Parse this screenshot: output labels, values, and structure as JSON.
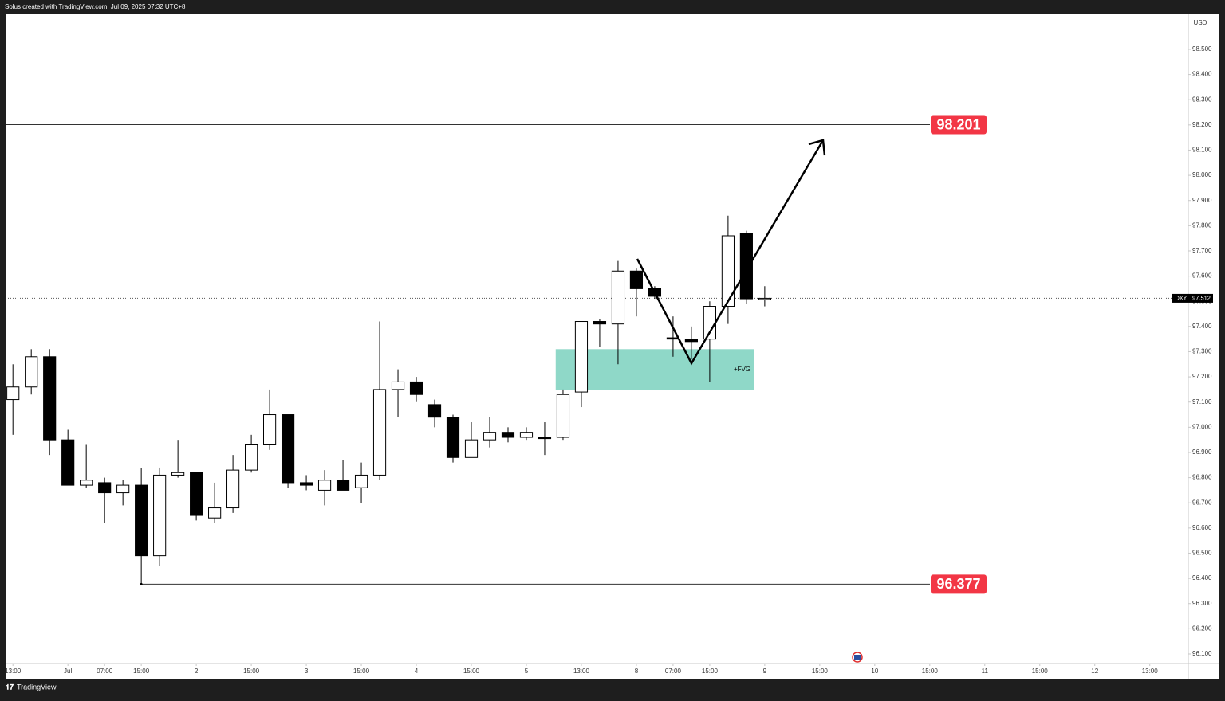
{
  "header": {
    "title": "Solus created with TradingView.com, Jul 09, 2025 07:32 UTC+8"
  },
  "chart_data": {
    "type": "candlestick",
    "currency": "USD",
    "symbol": "DXY",
    "last": 97.512,
    "up_color": "#ffffff",
    "down_color": "#000000",
    "open": [
      97.11,
      97.16,
      97.28,
      96.95,
      96.77,
      96.78,
      96.74,
      96.77,
      96.49,
      96.81,
      96.82,
      96.64,
      96.68,
      96.83,
      96.93,
      97.05,
      96.78,
      96.75,
      96.79,
      96.76,
      96.81,
      97.15,
      97.18,
      97.09,
      97.04,
      96.88,
      96.95,
      96.98,
      96.96,
      96.96,
      96.96,
      97.14,
      97.42,
      97.41,
      97.62,
      97.55,
      97.355,
      97.35,
      97.35,
      97.48,
      97.77,
      97.51
    ],
    "high": [
      97.25,
      97.31,
      97.31,
      96.99,
      96.93,
      96.8,
      96.79,
      96.84,
      96.84,
      96.95,
      96.82,
      96.78,
      96.89,
      96.97,
      97.15,
      97.05,
      96.81,
      96.83,
      96.87,
      96.86,
      97.42,
      97.23,
      97.2,
      97.11,
      97.05,
      97.02,
      97.04,
      97.0,
      97.0,
      97.02,
      97.15,
      97.42,
      97.43,
      97.66,
      97.63,
      97.56,
      97.44,
      97.4,
      97.5,
      97.84,
      97.78,
      97.56
    ],
    "low": [
      96.97,
      97.13,
      96.89,
      96.77,
      96.76,
      96.62,
      96.69,
      96.377,
      96.45,
      96.8,
      96.63,
      96.62,
      96.66,
      96.82,
      96.91,
      96.76,
      96.75,
      96.69,
      96.75,
      96.7,
      96.79,
      97.04,
      97.1,
      97.0,
      96.86,
      96.88,
      96.92,
      96.94,
      96.95,
      96.89,
      96.95,
      97.08,
      97.32,
      97.25,
      97.44,
      97.51,
      97.28,
      97.27,
      97.18,
      97.41,
      97.49,
      97.48
    ],
    "close": [
      97.16,
      97.28,
      96.95,
      96.77,
      96.79,
      96.74,
      96.77,
      96.49,
      96.81,
      96.82,
      96.65,
      96.68,
      96.83,
      96.93,
      97.05,
      96.78,
      96.77,
      96.79,
      96.75,
      96.81,
      97.15,
      97.18,
      97.13,
      97.04,
      96.88,
      96.95,
      96.98,
      96.96,
      96.98,
      96.955,
      97.13,
      97.42,
      97.41,
      97.62,
      97.55,
      97.52,
      97.35,
      97.34,
      97.48,
      97.76,
      97.51,
      97.512
    ],
    "ylim": [
      96.062,
      98.639
    ],
    "yticks": [
      {
        "value": 96.1,
        "label": "96.100"
      },
      {
        "value": 96.2,
        "label": "96.200"
      },
      {
        "value": 96.3,
        "label": "96.300"
      },
      {
        "value": 96.4,
        "label": "96.400"
      },
      {
        "value": 96.5,
        "label": "96.500"
      },
      {
        "value": 96.6,
        "label": "96.600"
      },
      {
        "value": 96.7,
        "label": "96.700"
      },
      {
        "value": 96.8,
        "label": "96.800"
      },
      {
        "value": 96.9,
        "label": "96.900"
      },
      {
        "value": 97.0,
        "label": "97.000"
      },
      {
        "value": 97.1,
        "label": "97.100"
      },
      {
        "value": 97.2,
        "label": "97.200"
      },
      {
        "value": 97.3,
        "label": "97.300"
      },
      {
        "value": 97.4,
        "label": "97.400"
      },
      {
        "value": 97.5,
        "label": "97.500"
      },
      {
        "value": 97.6,
        "label": "97.600"
      },
      {
        "value": 97.7,
        "label": "97.700"
      },
      {
        "value": 97.8,
        "label": "97.800"
      },
      {
        "value": 97.9,
        "label": "97.900"
      },
      {
        "value": 98.0,
        "label": "98.000"
      },
      {
        "value": 98.1,
        "label": "98.100"
      },
      {
        "value": 98.2,
        "label": "98.200"
      },
      {
        "value": 98.3,
        "label": "98.300"
      },
      {
        "value": 98.4,
        "label": "98.400"
      },
      {
        "value": 98.5,
        "label": "98.500"
      }
    ],
    "xlim": [
      -0.4,
      64.1
    ],
    "xticks": [
      {
        "value": 0,
        "label": "13:00"
      },
      {
        "value": 3,
        "label": "Jul"
      },
      {
        "value": 5,
        "label": "07:00"
      },
      {
        "value": 7,
        "label": "15:00"
      },
      {
        "value": 10,
        "label": "2"
      },
      {
        "value": 13,
        "label": "15:00"
      },
      {
        "value": 16,
        "label": "3"
      },
      {
        "value": 19,
        "label": "15:00"
      },
      {
        "value": 22,
        "label": "4"
      },
      {
        "value": 25,
        "label": "15:00"
      },
      {
        "value": 28,
        "label": "5"
      },
      {
        "value": 31,
        "label": "13:00"
      },
      {
        "value": 34,
        "label": "8"
      },
      {
        "value": 36,
        "label": "07:00"
      },
      {
        "value": 38,
        "label": "15:00"
      },
      {
        "value": 41,
        "label": "9"
      },
      {
        "value": 44,
        "label": "15:00"
      },
      {
        "value": 47,
        "label": "10"
      },
      {
        "value": 50,
        "label": "15:00"
      },
      {
        "value": 53,
        "label": "11"
      },
      {
        "value": 56,
        "label": "15:00"
      },
      {
        "value": 59,
        "label": "12"
      },
      {
        "value": 62,
        "label": "13:00"
      }
    ],
    "levels": [
      98.201,
      96.377
    ],
    "level_color": "#f23645",
    "fvg": {
      "label": "+FVG",
      "high": 97.31,
      "low": 97.147,
      "from_bar": 30,
      "to_bar": 40,
      "color": "#8fd8c8"
    }
  },
  "footer": {
    "brand": "TradingView"
  }
}
